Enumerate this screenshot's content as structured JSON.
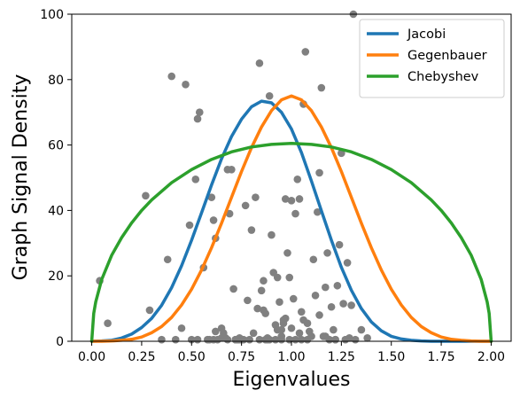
{
  "chart_data": {
    "type": "line",
    "xlabel": "Eigenvalues",
    "ylabel": "Graph Signal Density",
    "xlim": [
      -0.1,
      2.1
    ],
    "ylim": [
      0,
      100
    ],
    "xticks": [
      0.0,
      0.25,
      0.5,
      0.75,
      1.0,
      1.25,
      1.5,
      1.75,
      2.0
    ],
    "xtick_labels": [
      "0.00",
      "0.25",
      "0.50",
      "0.75",
      "1.00",
      "1.25",
      "1.50",
      "1.75",
      "2.00"
    ],
    "yticks": [
      0,
      20,
      40,
      60,
      80,
      100
    ],
    "ytick_labels": [
      "0",
      "20",
      "40",
      "60",
      "80",
      "100"
    ],
    "grid": false,
    "legend_position": "top-right",
    "series": [
      {
        "name": "Jacobi",
        "color": "#1f77b4",
        "x": [
          0.0,
          0.05,
          0.1,
          0.15,
          0.2,
          0.25,
          0.3,
          0.35,
          0.4,
          0.45,
          0.5,
          0.55,
          0.6,
          0.65,
          0.7,
          0.75,
          0.8,
          0.85,
          0.9,
          0.95,
          1.0,
          1.05,
          1.1,
          1.15,
          1.2,
          1.25,
          1.3,
          1.35,
          1.4,
          1.45,
          1.5,
          1.55,
          1.6,
          1.65,
          1.7,
          1.75,
          1.8,
          1.85,
          1.9,
          1.95,
          2.0
        ],
        "y": [
          0.0,
          0.1,
          0.3,
          1.0,
          2.2,
          4.2,
          7.0,
          11.0,
          16.4,
          23.1,
          30.9,
          39.3,
          47.8,
          55.8,
          62.6,
          67.9,
          71.7,
          73.4,
          72.9,
          70.0,
          64.9,
          57.7,
          49.0,
          39.9,
          30.9,
          22.6,
          15.6,
          10.0,
          5.9,
          3.2,
          1.5,
          0.7,
          0.3,
          0.1,
          0.0,
          0.0,
          0.0,
          0.0,
          0.0,
          0.0,
          0.0
        ]
      },
      {
        "name": "Gegenbauer",
        "color": "#ff7f0e",
        "x": [
          0.0,
          0.05,
          0.1,
          0.15,
          0.2,
          0.25,
          0.3,
          0.35,
          0.4,
          0.45,
          0.5,
          0.55,
          0.6,
          0.65,
          0.7,
          0.75,
          0.8,
          0.85,
          0.9,
          0.95,
          1.0,
          1.05,
          1.1,
          1.15,
          1.2,
          1.25,
          1.3,
          1.35,
          1.4,
          1.45,
          1.5,
          1.55,
          1.6,
          1.65,
          1.7,
          1.75,
          1.8,
          1.85,
          1.9,
          1.95,
          2.0
        ],
        "y": [
          0.0,
          0.0,
          0.1,
          0.3,
          0.6,
          1.3,
          2.6,
          4.5,
          7.3,
          11.1,
          15.9,
          21.8,
          28.6,
          36.1,
          44.0,
          51.9,
          59.2,
          65.5,
          70.5,
          73.8,
          75.0,
          73.8,
          70.5,
          65.5,
          59.2,
          51.9,
          44.0,
          36.1,
          28.6,
          21.8,
          15.9,
          11.1,
          7.3,
          4.5,
          2.6,
          1.3,
          0.6,
          0.3,
          0.1,
          0.0,
          0.0
        ]
      },
      {
        "name": "Chebyshev",
        "color": "#2ca02c",
        "x": [
          0.0,
          0.01,
          0.02,
          0.05,
          0.1,
          0.15,
          0.2,
          0.25,
          0.3,
          0.4,
          0.5,
          0.6,
          0.7,
          0.8,
          0.9,
          1.0,
          1.1,
          1.2,
          1.3,
          1.4,
          1.5,
          1.6,
          1.7,
          1.75,
          1.8,
          1.85,
          1.9,
          1.95,
          1.98,
          1.99,
          2.0
        ],
        "y": [
          0.0,
          8.5,
          12.0,
          18.9,
          26.3,
          31.7,
          36.2,
          40.0,
          43.2,
          48.5,
          52.5,
          55.6,
          57.9,
          59.4,
          60.2,
          60.5,
          60.2,
          59.4,
          57.9,
          55.6,
          52.5,
          48.5,
          43.2,
          40.0,
          36.2,
          31.7,
          26.3,
          18.9,
          12.0,
          8.5,
          0.0
        ]
      }
    ],
    "scatter": {
      "color": "#808080",
      "x": [
        0.04,
        0.08,
        0.27,
        0.29,
        0.35,
        0.38,
        0.4,
        0.42,
        0.45,
        0.47,
        0.49,
        0.5,
        0.52,
        0.53,
        0.54,
        0.56,
        0.58,
        0.6,
        0.61,
        0.62,
        0.63,
        0.65,
        0.66,
        0.67,
        0.68,
        0.69,
        0.7,
        0.71,
        0.72,
        0.73,
        0.74,
        0.75,
        0.76,
        0.77,
        0.78,
        0.79,
        0.8,
        0.81,
        0.82,
        0.83,
        0.84,
        0.85,
        0.86,
        0.87,
        0.88,
        0.89,
        0.9,
        0.91,
        0.92,
        0.93,
        0.94,
        0.95,
        0.96,
        0.97,
        0.98,
        0.99,
        1.0,
        1.01,
        1.02,
        1.03,
        1.04,
        1.05,
        1.06,
        1.07,
        1.08,
        1.09,
        1.1,
        1.11,
        1.12,
        1.13,
        1.14,
        1.15,
        1.16,
        1.17,
        1.18,
        1.19,
        1.2,
        1.21,
        1.22,
        1.23,
        1.24,
        1.25,
        1.26,
        1.27,
        1.28,
        1.29,
        1.3,
        1.31,
        1.32,
        1.35,
        1.38,
        0.68,
        0.72,
        0.74,
        0.86,
        0.88,
        0.93,
        0.96,
        0.99,
        1.02,
        1.06,
        1.14,
        0.84,
        0.87,
        0.97,
        1.04,
        0.62,
        0.65,
        0.95,
        1.0,
        1.08,
        1.17,
        0.73,
        0.89,
        0.92,
        1.22,
        0.53,
        0.59,
        0.61,
        0.95,
        1.05
      ],
      "y": [
        18.5,
        5.5,
        44.5,
        9.5,
        0.5,
        25.0,
        81.0,
        0.5,
        4.0,
        78.5,
        35.5,
        0.5,
        49.5,
        68.0,
        70.0,
        22.5,
        0.5,
        44.0,
        37.0,
        31.5,
        0.5,
        4.0,
        2.5,
        1.0,
        52.5,
        39.0,
        52.5,
        16.0,
        0.5,
        0.5,
        1.0,
        0.5,
        0.5,
        41.5,
        12.5,
        0.5,
        34.0,
        2.5,
        44.0,
        10.0,
        85.0,
        15.5,
        18.5,
        8.5,
        0.5,
        75.0,
        32.5,
        21.0,
        5.0,
        19.5,
        12.0,
        3.5,
        6.5,
        43.5,
        27.0,
        19.5,
        43.0,
        13.0,
        39.0,
        49.5,
        43.5,
        9.0,
        72.5,
        88.5,
        5.5,
        3.0,
        1.5,
        25.0,
        14.0,
        39.5,
        51.5,
        77.5,
        1.5,
        16.5,
        27.0,
        0.5,
        10.5,
        3.5,
        0.5,
        17.0,
        29.5,
        57.5,
        11.5,
        0.5,
        24.0,
        1.0,
        11.0,
        100.0,
        0.5,
        3.5,
        1.0,
        0.5,
        0.5,
        0.5,
        9.5,
        1.0,
        3.5,
        5.5,
        0.5,
        0.5,
        6.5,
        8.0,
        0.5,
        0.5,
        7.0,
        2.5,
        3.0,
        1.0,
        1.5,
        4.0,
        0.5,
        1.5,
        0.5,
        0.5,
        0.5,
        0.5,
        0.5,
        0.5,
        0.5,
        0.5,
        0.5
      ]
    }
  }
}
